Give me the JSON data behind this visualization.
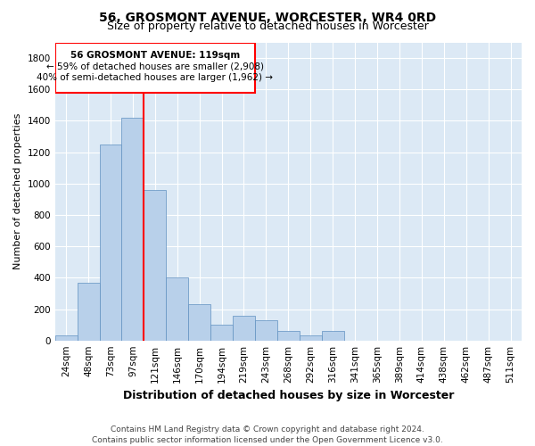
{
  "title": "56, GROSMONT AVENUE, WORCESTER, WR4 0RD",
  "subtitle": "Size of property relative to detached houses in Worcester",
  "xlabel": "Distribution of detached houses by size in Worcester",
  "ylabel": "Number of detached properties",
  "footer_line1": "Contains HM Land Registry data © Crown copyright and database right 2024.",
  "footer_line2": "Contains public sector information licensed under the Open Government Licence v3.0.",
  "categories": [
    "24sqm",
    "48sqm",
    "73sqm",
    "97sqm",
    "121sqm",
    "146sqm",
    "170sqm",
    "194sqm",
    "219sqm",
    "243sqm",
    "268sqm",
    "292sqm",
    "316sqm",
    "341sqm",
    "365sqm",
    "389sqm",
    "414sqm",
    "438sqm",
    "462sqm",
    "487sqm",
    "511sqm"
  ],
  "values": [
    35,
    370,
    1250,
    1420,
    960,
    400,
    230,
    100,
    155,
    130,
    60,
    35,
    60,
    0,
    0,
    0,
    0,
    0,
    0,
    0,
    0
  ],
  "bar_color": "#b8d0ea",
  "bar_edge_color": "#6090c0",
  "annotation_line1": "56 GROSMONT AVENUE: 119sqm",
  "annotation_line2": "← 59% of detached houses are smaller (2,908)",
  "annotation_line3": "40% of semi-detached houses are larger (1,962) →",
  "annotation_box_color": "red",
  "vline_color": "red",
  "vline_x_index": 4,
  "ylim": [
    0,
    1900
  ],
  "yticks": [
    0,
    200,
    400,
    600,
    800,
    1000,
    1200,
    1400,
    1600,
    1800
  ],
  "background_color": "#dce9f5",
  "grid_color": "#ffffff",
  "title_fontsize": 10,
  "subtitle_fontsize": 9,
  "ylabel_fontsize": 8,
  "xlabel_fontsize": 9,
  "tick_fontsize": 7.5,
  "footer_fontsize": 6.5,
  "ann_fontsize": 7.5
}
